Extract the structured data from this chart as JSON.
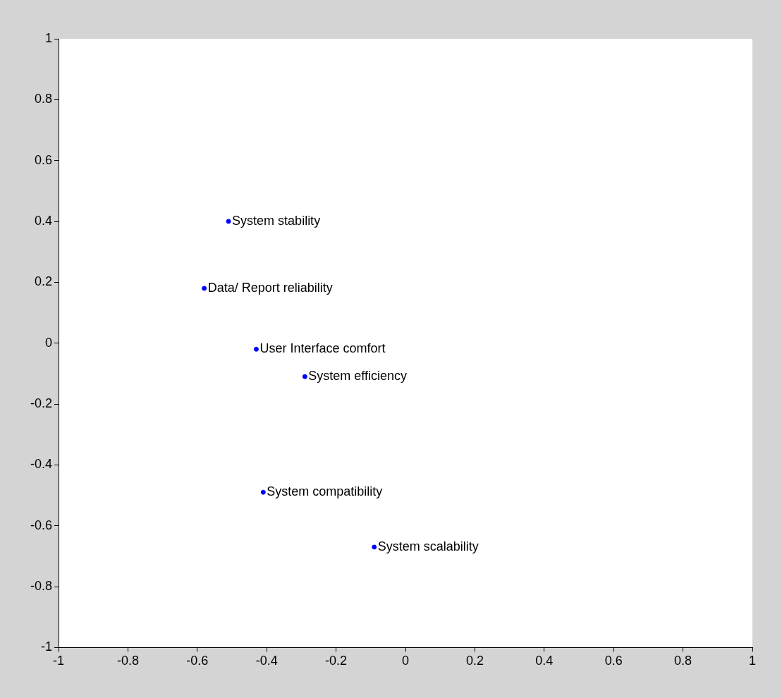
{
  "chart_data": {
    "type": "scatter",
    "xlim": [
      -1,
      1
    ],
    "ylim": [
      -1,
      1
    ],
    "xticks": [
      -1,
      -0.8,
      -0.6,
      -0.4,
      -0.2,
      0,
      0.2,
      0.4,
      0.6,
      0.8,
      1
    ],
    "yticks": [
      -1,
      -0.8,
      -0.6,
      -0.4,
      -0.2,
      0,
      0.2,
      0.4,
      0.6,
      0.8,
      1
    ],
    "grid": false,
    "legend": false,
    "marker": "circle",
    "series": [
      {
        "color": "#0000ff",
        "x": [
          -0.51,
          -0.58,
          -0.43,
          -0.29,
          -0.41,
          -0.09
        ],
        "values": [
          0.4,
          0.18,
          -0.02,
          -0.11,
          -0.49,
          -0.67
        ]
      }
    ],
    "annotations": [
      {
        "text": "System stability",
        "x": -0.51,
        "y": 0.4
      },
      {
        "text": "Data/ Report reliability",
        "x": -0.58,
        "y": 0.18
      },
      {
        "text": "User Interface comfort",
        "x": -0.43,
        "y": -0.02
      },
      {
        "text": "System efficiency",
        "x": -0.29,
        "y": -0.11
      },
      {
        "text": "System compatibility",
        "x": -0.41,
        "y": -0.49
      },
      {
        "text": "System scalability",
        "x": -0.09,
        "y": -0.67
      }
    ]
  }
}
